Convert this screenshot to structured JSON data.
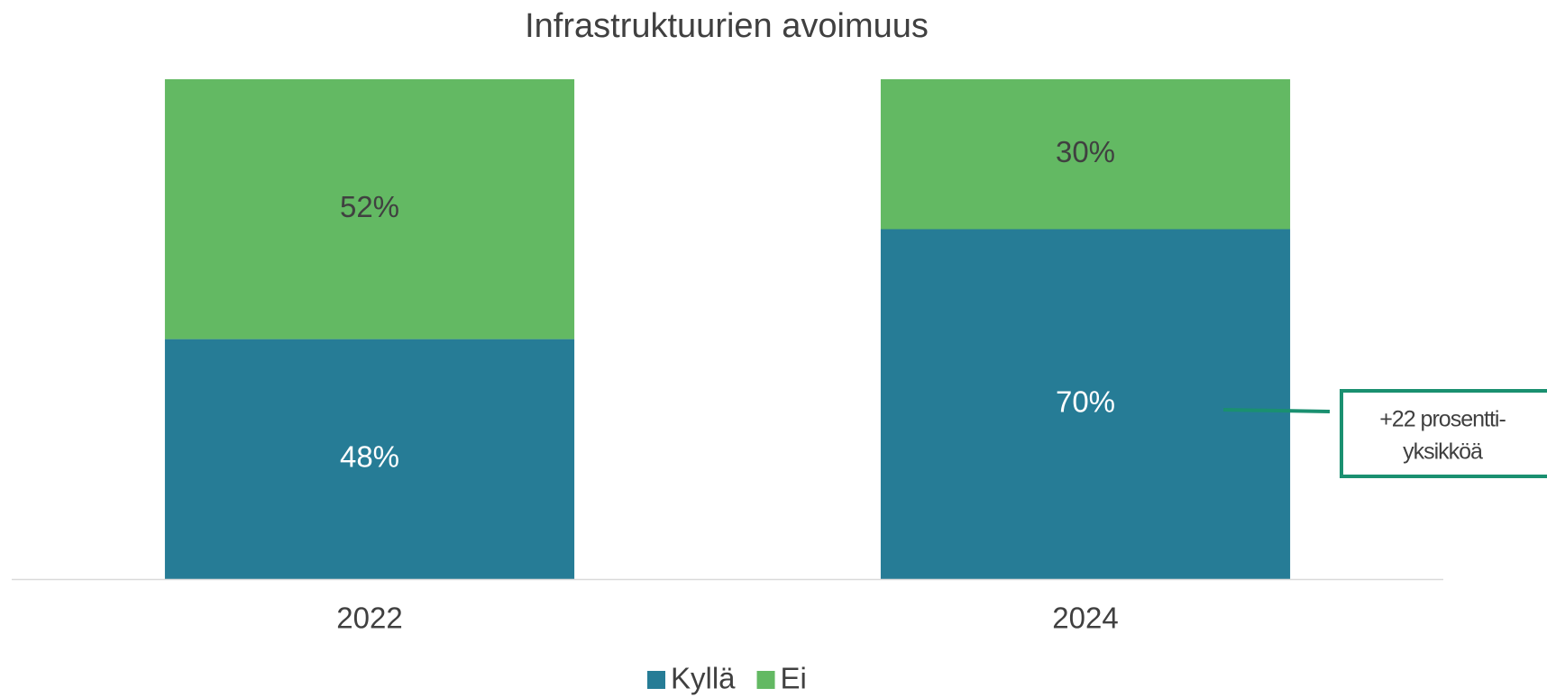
{
  "chart_data": {
    "type": "stacked_bar",
    "title": "Infrastruktuurien avoimuus",
    "categories": [
      "2022",
      "2024"
    ],
    "series": [
      {
        "name": "Kyllä",
        "color": "#267c96",
        "values": [
          48,
          70
        ],
        "value_labels": [
          "48%",
          "70%"
        ]
      },
      {
        "name": "Ei",
        "color": "#63b963",
        "values": [
          52,
          30
        ],
        "value_labels": [
          "52%",
          "30%"
        ]
      }
    ],
    "ylim": [
      0,
      100
    ],
    "annotation": [
      "+22 prosentti-",
      "yksikköä"
    ],
    "annotation_color": "#1a9070"
  }
}
